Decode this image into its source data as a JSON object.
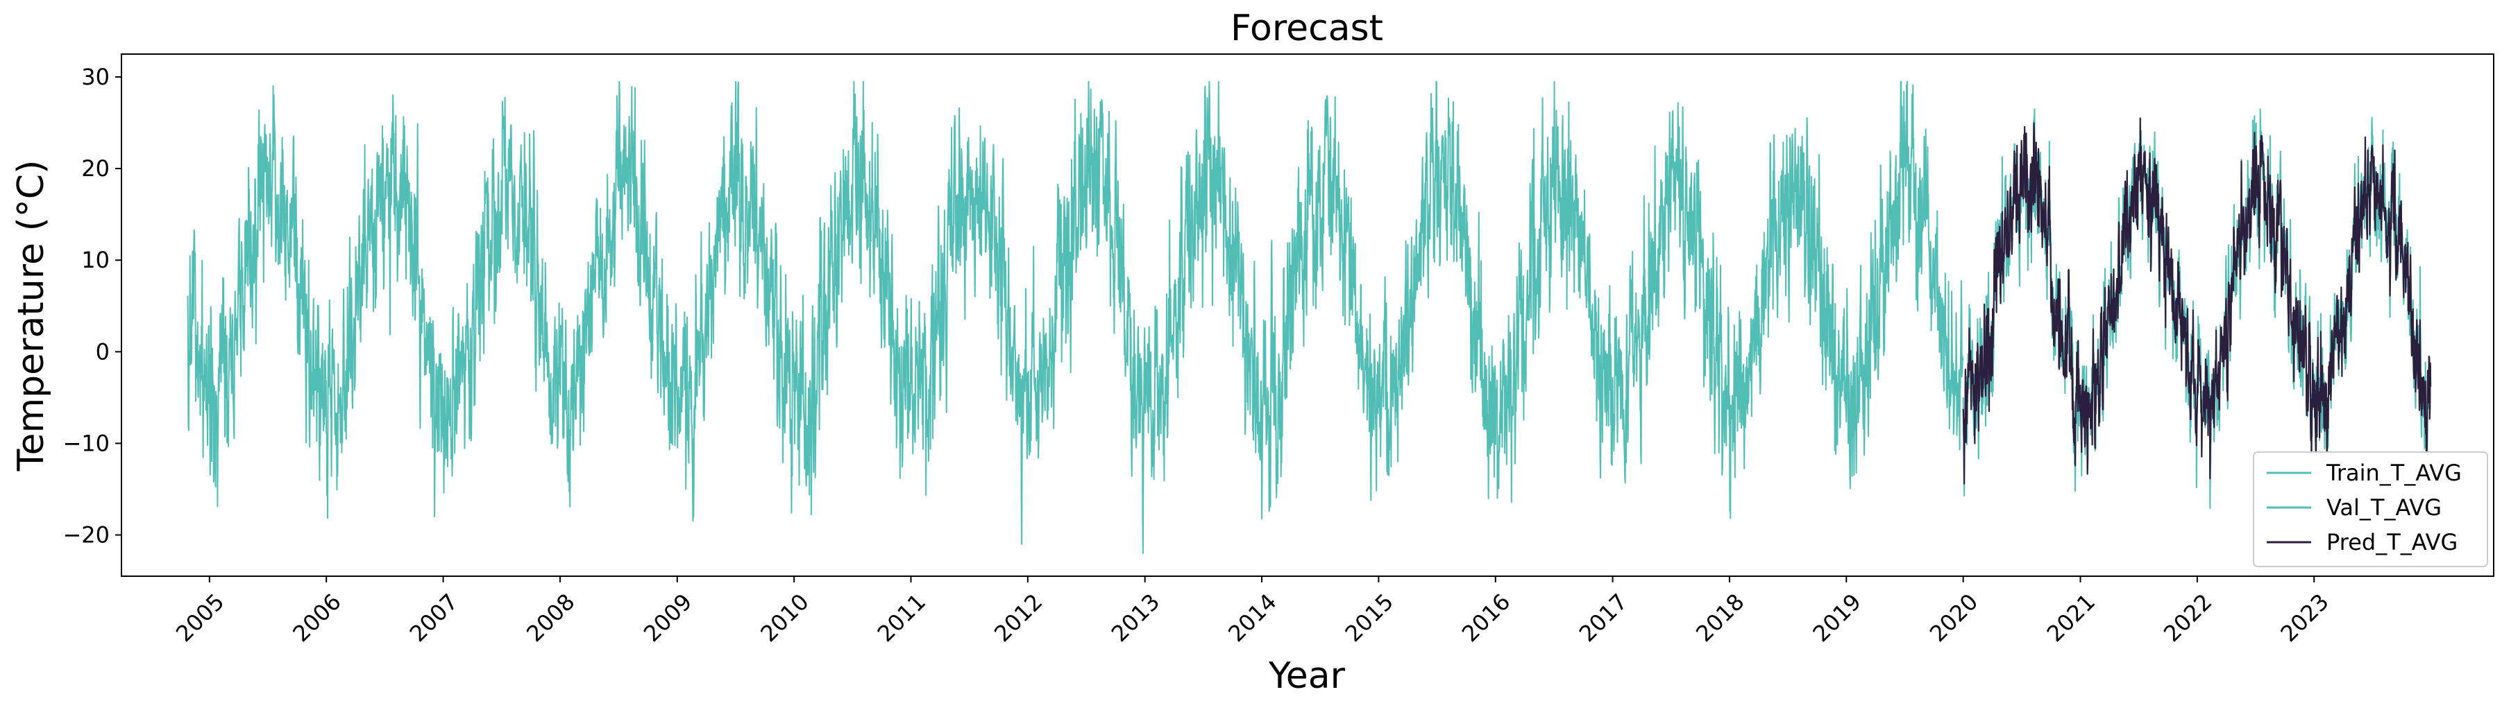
{
  "chart_data": {
    "type": "line",
    "title": "Forecast",
    "xlabel": "Year",
    "ylabel": "Temperature (°C)",
    "x_ticks": [
      "2005",
      "2006",
      "2007",
      "2008",
      "2009",
      "2010",
      "2011",
      "2012",
      "2013",
      "2014",
      "2015",
      "2016",
      "2017",
      "2018",
      "2019",
      "2020",
      "2021",
      "2022",
      "2023"
    ],
    "y_ticks": [
      -20,
      -10,
      0,
      10,
      20,
      30
    ],
    "xlim": [
      "2004-04-01",
      "2024-07-15"
    ],
    "ylim": [
      -24.5,
      32.5
    ],
    "grid": false,
    "legend_position": "lower-right",
    "x_tick_rotation": 45,
    "series": [
      {
        "name": "Train_T_AVG",
        "color": "#52bdb5",
        "x_start": "2004-10-25",
        "x_end": "2019-12-31",
        "seasonal_mean": 6.5,
        "seasonal_amplitude": 12,
        "daily_noise_sd": 4.5,
        "observed_max": 29.5,
        "observed_min": -22
      },
      {
        "name": "Val_T_AVG",
        "color": "#52bdb5",
        "x_start": "2020-01-01",
        "x_end": "2023-12-31",
        "seasonal_mean": 6.5,
        "seasonal_amplitude": 12,
        "daily_noise_sd": 4.5,
        "observed_max": 26.5,
        "observed_min": -20
      },
      {
        "name": "Pred_T_AVG",
        "color": "#2a1f3d",
        "x_start": "2020-01-01",
        "x_end": "2023-12-31",
        "seasonal_mean": 6.5,
        "seasonal_amplitude": 12,
        "daily_noise_sd": 3.5,
        "observed_max": 25.5,
        "observed_min": -16
      }
    ]
  }
}
